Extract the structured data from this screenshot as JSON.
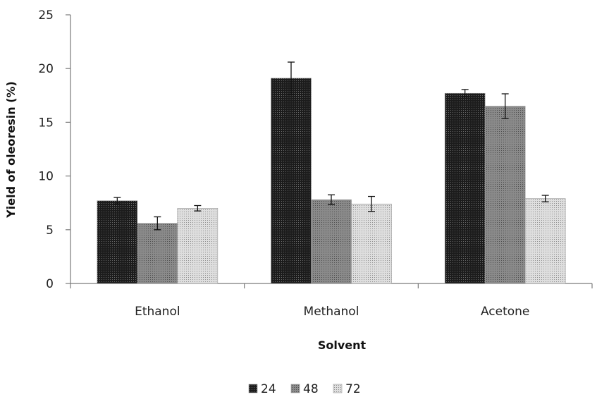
{
  "chart_data": {
    "type": "bar",
    "categories": [
      "Ethanol",
      "Methanol",
      "Acetone"
    ],
    "series": [
      {
        "name": "24",
        "values": [
          7.7,
          19.1,
          17.7
        ],
        "errors": [
          0.3,
          1.5,
          0.35
        ],
        "color": "#1c1c1c"
      },
      {
        "name": "48",
        "values": [
          5.6,
          7.8,
          16.5
        ],
        "errors": [
          0.6,
          0.45,
          1.15
        ],
        "color": "#858585"
      },
      {
        "name": "72",
        "values": [
          7.0,
          7.4,
          7.9
        ],
        "errors": [
          0.25,
          0.7,
          0.3
        ],
        "color": "#d2d2d2"
      }
    ],
    "xlabel": "Solvent",
    "ylabel": "Yield of oleoresin (%)",
    "ylim": [
      0,
      25
    ],
    "yticks": [
      "0",
      "5",
      "10",
      "15",
      "20",
      "25"
    ],
    "grid": false,
    "legend": "bottom-center"
  }
}
